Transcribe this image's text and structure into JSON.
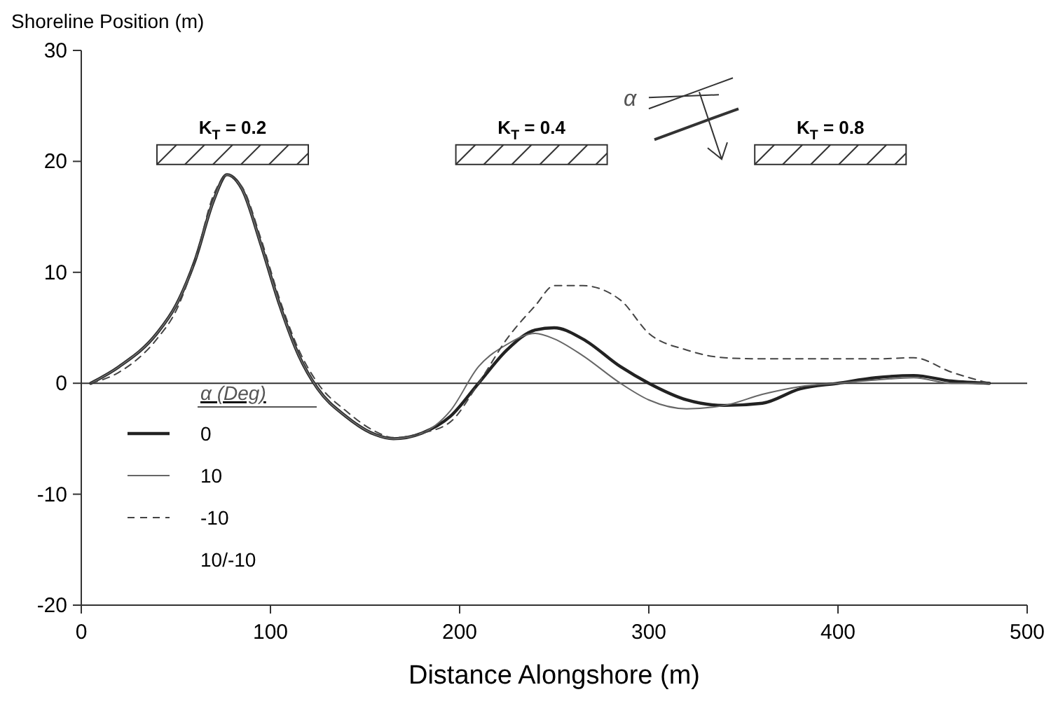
{
  "chart_data": {
    "type": "line",
    "xlabel": "Distance Alongshore (m)",
    "ylabel": "Shoreline Position (m)",
    "legend_title": "α (Deg)",
    "legend": "left",
    "xlim": [
      0,
      500
    ],
    "xticks": [
      0,
      100,
      200,
      300,
      400,
      500
    ],
    "ylim": [
      -20,
      30
    ],
    "yticks": [
      -20,
      -10,
      0,
      10,
      20,
      30
    ],
    "grid": false,
    "ref_lines": [
      {
        "axis": "y",
        "value": 0,
        "color": "#333333"
      }
    ],
    "annotations": [
      "K$_{T}$ = 0.2",
      "K$_{T}$ = 0.4",
      "K$_{T}$ = 0.8",
      "α",
      "10/-10"
    ],
    "x": [
      5,
      20,
      40,
      50,
      60,
      70,
      77,
      85,
      95,
      105,
      115,
      125,
      140,
      155,
      165,
      180,
      195,
      210,
      225,
      240,
      250,
      265,
      285,
      300,
      320,
      340,
      360,
      380,
      400,
      420,
      440,
      460,
      480
    ],
    "series": [
      {
        "name": "0",
        "color": "#222222",
        "line_style": "solid",
        "values": [
          0,
          1.5,
          4.5,
          7,
          11,
          16.5,
          18.8,
          17.5,
          12.5,
          7,
          2.5,
          -0.5,
          -3,
          -4.6,
          -5,
          -4.5,
          -3,
          0,
          3,
          4.8,
          5,
          4,
          1.5,
          0,
          -1.5,
          -2,
          -1.8,
          -0.5,
          0,
          0.5,
          0.7,
          0.2,
          0
        ]
      },
      {
        "name": "10",
        "color": "#666666",
        "line_style": "solid",
        "values": [
          0,
          1.5,
          4.5,
          7,
          11,
          16.5,
          18.8,
          17.5,
          12.5,
          7,
          2.5,
          -0.5,
          -3,
          -4.6,
          -5,
          -4.5,
          -2.5,
          1.5,
          3.5,
          4.5,
          4,
          2.5,
          0,
          -1.5,
          -2.3,
          -2,
          -1,
          -0.3,
          0,
          0.3,
          0.5,
          0,
          0
        ]
      },
      {
        "name": "-10",
        "color": "#444444",
        "line_style": "dashed",
        "values": [
          0,
          1,
          4,
          6.5,
          11,
          17,
          18.7,
          17.7,
          13,
          7.5,
          3,
          0,
          -2.5,
          -4.3,
          -4.9,
          -4.5,
          -3.5,
          0,
          4,
          7,
          8.8,
          8.8,
          7.5,
          4.5,
          3,
          2.3,
          2.2,
          2.2,
          2.2,
          2.2,
          2.3,
          1,
          0
        ]
      }
    ]
  }
}
